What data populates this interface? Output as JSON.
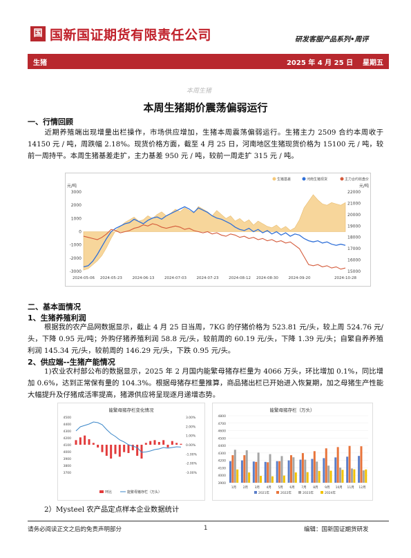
{
  "header": {
    "logo_glyph": "国",
    "brand": "国新国证期货有限责任公司",
    "series": "研发客服产品系列•周评"
  },
  "banner": {
    "category": "生猪",
    "date": "2025 年 4 月 25 日    星期五"
  },
  "watermark": "本周生猪",
  "title": "本周生猪期价震荡偏弱运行",
  "section1": {
    "heading": "一、行情回顾",
    "text": "近期养殖端出现增量出栏操作，市场供应增加，生猪本周震荡偏弱运行。生猪主力 2509 合约本周收于 14150 元 / 吨，周跌幅 2.18%。现货价格方面，截至 4 月 25 日，河南地区生猪现货价格为 15100 元 / 吨，较前一周持平。本周生猪基差走扩，主力基差 950 元 / 吨，较前一周走扩 315 元 / 吨。"
  },
  "chart_data": {
    "type": "line",
    "left_unit": "元/吨",
    "right_unit": "元/吨",
    "legend": [
      "生猪基差",
      "河南生猪现货",
      "主力合约收盘价"
    ],
    "colors": [
      "#f5c97a",
      "#2e6fd8",
      "#d45a3a"
    ],
    "left_ticks": [
      "3000",
      "2000",
      "1000",
      "0",
      "-1000",
      "-2000",
      "-3000"
    ],
    "right_ticks": [
      "22000",
      "21000",
      "20000",
      "19000",
      "18000",
      "17000",
      "16000",
      "15000"
    ],
    "x_ticks": [
      "2024-05-06",
      "2024-05-23",
      "2024-06-13",
      "2024-07-03",
      "2024-07-23",
      "2024-08-12",
      "2024-08-30",
      "2024-09-20",
      "2024-10-28"
    ],
    "left_range": [
      -3000,
      3000
    ],
    "right_range": [
      15000,
      22000
    ],
    "basis": [
      -2900,
      -2800,
      -2500,
      -2200,
      -1800,
      -1200,
      -500,
      100,
      400,
      700,
      900,
      1100,
      800,
      900,
      1200,
      1000,
      1300,
      1500,
      1200,
      1400,
      1700,
      1500,
      1800,
      1600,
      1400,
      1900,
      1700,
      1500,
      1200,
      1600,
      1300,
      1000,
      1200,
      800,
      1000,
      700,
      900,
      500,
      800,
      600,
      400,
      300,
      500,
      200,
      400,
      100,
      300,
      900,
      1800,
      2300,
      2800,
      2400,
      2100,
      2000,
      2200,
      2100,
      2000,
      2200
    ],
    "spot": [
      15400,
      15500,
      15900,
      16500,
      17200,
      17900,
      18500,
      18800,
      19000,
      19200,
      19300,
      19600,
      19400,
      19200,
      19500,
      19700,
      19800,
      19600,
      19900,
      20100,
      20300,
      20500,
      20700,
      20500,
      20200,
      20600,
      20400,
      20200,
      19900,
      19700,
      19600,
      19400,
      19200,
      18900,
      18700,
      18600,
      18800,
      18500,
      18700,
      18400,
      18600,
      18300,
      18500,
      18200,
      18400,
      18100,
      18300,
      18200,
      17900,
      17700,
      17600,
      17700,
      17500,
      17600,
      17400,
      17300,
      17400,
      17300
    ],
    "futures": [
      18100,
      18000,
      17900,
      17800,
      18000,
      18300,
      18700,
      18600,
      18400,
      18500,
      18600,
      18800,
      18900,
      19100,
      19000,
      19200,
      19100,
      18900,
      18800,
      18900,
      19000,
      18900,
      18700,
      18800,
      18600,
      18500,
      18400,
      18500,
      18300,
      18400,
      18200,
      18100,
      18300,
      18200,
      18000,
      18100,
      17900,
      18000,
      17800,
      17900,
      17700,
      17800,
      17600,
      17700,
      17500,
      17600,
      17300,
      17000,
      16300,
      15600,
      15500,
      15600,
      15400,
      15500,
      15300,
      15400,
      15200,
      15300
    ]
  },
  "section2": {
    "heading": "二、基本面情况",
    "sub1": "1、生猪养殖利润",
    "text1": "根据我的农产品网数据显示，截止 4 月 25 日当周，7KG 的仔猪价格为 523.81 元/头，较上周 524.76 元/头，下降 0.95 元/吨；外购仔猪养殖利润 58.8 元/头，较前周的 60.19 元/头，下降 1.39 元/头；自繁自养养殖利润 145.34 元/头，较前周的 146.29 元/头，下跌 0.95 元/头。",
    "sub2": "2、供应端--生猪产能情况",
    "text2": "1)农业农村部公布的数据显示，2025 年 2 月国内能繁母猪存栏量为 4066 万头，环比增加 0.1%，同比增加 0.6%，达到正常保有量的 104.3%。根据母猪存栏量推算，商品猪出栏已开始进入恢复期，加之母猪生产性能大幅提升及仔猪成活率提高，猪源供应将呈现逐月递增态势。",
    "text3": "2）Mysteel 农产品定点样本企业数据统计"
  },
  "small_chart1": {
    "title": "能繁母猪存栏变化情况",
    "legend": [
      "环比",
      "能繁母猪存栏（万头）"
    ],
    "left_ticks": [
      "4500",
      "4400",
      "4300",
      "4200",
      "4100",
      "4000",
      "3900",
      "3800",
      "3700"
    ],
    "right_ticks": [
      "3.00%",
      "2.00%",
      "1.00%",
      "0.00%",
      "-1.00%",
      "-2.00%",
      "-3.00%"
    ],
    "line": [
      4300,
      4360,
      4380,
      4400,
      4430,
      4420,
      4390,
      4320,
      4260,
      4220,
      4170,
      4140,
      4100,
      4080,
      4060,
      3990,
      3996,
      4010,
      4030,
      4040,
      4060,
      4050,
      4060,
      4070,
      4066
    ],
    "bars": [
      0.5,
      0.8,
      1.0,
      0.6,
      0.2,
      -0.3,
      -0.8,
      -1.2,
      -1.5,
      -1.0,
      -1.3,
      -0.8,
      -0.9,
      -0.6,
      -1.2,
      -1.5,
      0.2,
      0.4,
      0.5,
      0.3,
      0.5,
      -0.3,
      0.4,
      0.2,
      0.1
    ]
  },
  "small_chart2": {
    "title": "能繁母猪存栏（万头）",
    "left_ticks": [
      "4800",
      "4700",
      "4600",
      "4500",
      "4400",
      "4300",
      "4200",
      "4100",
      "4000",
      "3900"
    ],
    "months": [
      "1月",
      "2月",
      "3月",
      "4月",
      "5月",
      "6月",
      "7月",
      "8月",
      "9月",
      "10月",
      "11月",
      "12月"
    ],
    "legend": [
      "2021年",
      "2022年",
      "2023年",
      "2024年"
    ],
    "colors": [
      "#5b7ec9",
      "#e8743b",
      "#a5a5a5",
      "#f2c200"
    ],
    "series": [
      [
        4190,
        4200,
        4185,
        4180,
        4190,
        4200,
        4210,
        4220,
        4230,
        4240,
        4250,
        4260
      ],
      [
        4270,
        4270,
        4180,
        4175,
        4190,
        4270,
        4298,
        4324,
        4362,
        4379,
        4394,
        4390
      ],
      [
        4343,
        4336,
        4305,
        4284,
        4258,
        4242,
        4210,
        4184,
        4130,
        4103,
        4091,
        4066
      ],
      [
        4078,
        4038,
        3992,
        3986,
        3996,
        4038,
        4042,
        4058,
        4062,
        4073,
        4080,
        4078
      ]
    ]
  },
  "footer": {
    "left": "请务必阅读正文之后的免责声明部分",
    "page": "1",
    "right": "编辑：国新国证期货研发"
  }
}
